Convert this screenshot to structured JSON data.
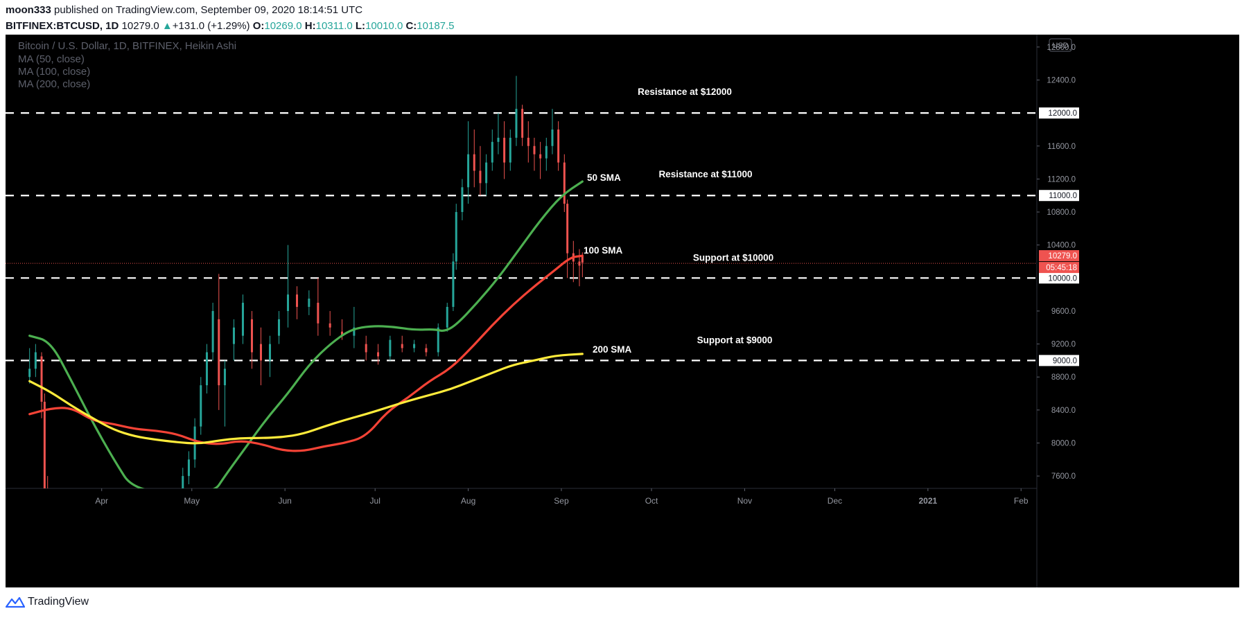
{
  "header": {
    "author": "moon333",
    "published": "published on TradingView.com, September 09, 2020 18:14:51 UTC",
    "symbol": "BITFINEX:BTCUSD, 1D",
    "last": "10279.0",
    "change_arrow": "▲",
    "change": "+131.0 (+1.29%)",
    "o_label": "O:",
    "o": "10269.0",
    "h_label": "H:",
    "h": "10311.0",
    "l_label": "L:",
    "l": "10010.0",
    "c_label": "C:",
    "c": "10187.5"
  },
  "legend": {
    "line1": "Bitcoin / U.S. Dollar, 1D, BITFINEX, Heikin Ashi",
    "line2": "MA (50, close)",
    "line3": "MA (100, close)",
    "line4": "MA (200, close)"
  },
  "footer": {
    "brand": "TradingView"
  },
  "colors": {
    "background": "#000000",
    "up": "#26a69a",
    "down": "#ef5350",
    "ma50": "#4caf50",
    "ma100": "#f44336",
    "ma200": "#ffeb3b"
  },
  "chart_data": {
    "type": "candlestick",
    "currency_badge": "USD",
    "x_ticks": [
      "Apr",
      "May",
      "Jun",
      "Jul",
      "Aug",
      "Sep",
      "Oct",
      "Nov",
      "Dec",
      "2021",
      "Feb"
    ],
    "y_ticks": [
      "12800.0",
      "12400.0",
      "12000.0",
      "11600.0",
      "11200.0",
      "11000.0",
      "10800.0",
      "10400.0",
      "10279.0",
      "10000.0",
      "9600.0",
      "9200.0",
      "9000.0",
      "8800.0",
      "8400.0",
      "8000.0",
      "7600.0"
    ],
    "ylim": [
      7450,
      12950
    ],
    "last_price_label": "10279.0",
    "countdown_label": "05:45:18",
    "levels": [
      {
        "value": 12000,
        "label": "Resistance at $12000",
        "axis_label": "12000.0"
      },
      {
        "value": 11000,
        "label": "Resistance at $11000",
        "axis_label": "11000.0"
      },
      {
        "value": 10000,
        "label": "Support at $10000",
        "axis_label": "10000.0"
      },
      {
        "value": 9000,
        "label": "Support at $9000",
        "axis_label": "9000.0"
      }
    ],
    "ma_labels": [
      "50 SMA",
      "100 SMA",
      "200 SMA"
    ],
    "series": [
      {
        "name": "MA (50, close)",
        "color": "#4caf50",
        "points": [
          [
            "2020-03-08",
            9300
          ],
          [
            "2020-03-15",
            9230
          ],
          [
            "2020-03-22",
            8750
          ],
          [
            "2020-03-29",
            8250
          ],
          [
            "2020-04-05",
            7800
          ],
          [
            "2020-04-12",
            7400
          ],
          [
            "2020-05-08",
            7380
          ],
          [
            "2020-05-12",
            7600
          ],
          [
            "2020-05-19",
            7950
          ],
          [
            "2020-05-26",
            8300
          ],
          [
            "2020-06-02",
            8600
          ],
          [
            "2020-06-09",
            8950
          ],
          [
            "2020-06-16",
            9200
          ],
          [
            "2020-06-23",
            9380
          ],
          [
            "2020-06-30",
            9420
          ],
          [
            "2020-07-07",
            9410
          ],
          [
            "2020-07-14",
            9370
          ],
          [
            "2020-07-21",
            9380
          ],
          [
            "2020-07-24",
            9350
          ],
          [
            "2020-07-28",
            9430
          ],
          [
            "2020-08-04",
            9700
          ],
          [
            "2020-08-11",
            10000
          ],
          [
            "2020-08-18",
            10350
          ],
          [
            "2020-08-25",
            10700
          ],
          [
            "2020-09-01",
            11000
          ],
          [
            "2020-09-08",
            11170
          ]
        ]
      },
      {
        "name": "MA (100, close)",
        "color": "#f44336",
        "points": [
          [
            "2020-03-08",
            8350
          ],
          [
            "2020-03-15",
            8420
          ],
          [
            "2020-03-22",
            8430
          ],
          [
            "2020-03-29",
            8270
          ],
          [
            "2020-04-05",
            8230
          ],
          [
            "2020-04-12",
            8170
          ],
          [
            "2020-04-19",
            8150
          ],
          [
            "2020-04-26",
            8110
          ],
          [
            "2020-05-03",
            8010
          ],
          [
            "2020-05-10",
            7980
          ],
          [
            "2020-05-17",
            8030
          ],
          [
            "2020-05-24",
            7990
          ],
          [
            "2020-05-31",
            7910
          ],
          [
            "2020-06-07",
            7900
          ],
          [
            "2020-06-14",
            7960
          ],
          [
            "2020-06-21",
            8000
          ],
          [
            "2020-06-28",
            8080
          ],
          [
            "2020-07-05",
            8380
          ],
          [
            "2020-07-12",
            8550
          ],
          [
            "2020-07-19",
            8750
          ],
          [
            "2020-07-26",
            8900
          ],
          [
            "2020-08-02",
            9150
          ],
          [
            "2020-08-09",
            9430
          ],
          [
            "2020-08-16",
            9680
          ],
          [
            "2020-08-23",
            9900
          ],
          [
            "2020-08-30",
            10100
          ],
          [
            "2020-09-04",
            10250
          ],
          [
            "2020-09-08",
            10270
          ]
        ]
      },
      {
        "name": "MA (200, close)",
        "color": "#ffeb3b",
        "points": [
          [
            "2020-03-08",
            8750
          ],
          [
            "2020-03-15",
            8620
          ],
          [
            "2020-03-22",
            8450
          ],
          [
            "2020-03-29",
            8300
          ],
          [
            "2020-04-05",
            8160
          ],
          [
            "2020-04-12",
            8080
          ],
          [
            "2020-04-19",
            8040
          ],
          [
            "2020-04-26",
            8010
          ],
          [
            "2020-05-03",
            7990
          ],
          [
            "2020-05-10",
            8030
          ],
          [
            "2020-05-17",
            8060
          ],
          [
            "2020-05-24",
            8060
          ],
          [
            "2020-05-31",
            8070
          ],
          [
            "2020-06-07",
            8110
          ],
          [
            "2020-06-14",
            8200
          ],
          [
            "2020-06-21",
            8280
          ],
          [
            "2020-06-28",
            8350
          ],
          [
            "2020-07-05",
            8430
          ],
          [
            "2020-07-12",
            8510
          ],
          [
            "2020-07-19",
            8580
          ],
          [
            "2020-07-26",
            8650
          ],
          [
            "2020-08-02",
            8750
          ],
          [
            "2020-08-09",
            8850
          ],
          [
            "2020-08-16",
            8950
          ],
          [
            "2020-08-23",
            9000
          ],
          [
            "2020-08-30",
            9060
          ],
          [
            "2020-09-08",
            9080
          ]
        ]
      }
    ],
    "candles_ohlc": [
      [
        "2020-03-08",
        8800,
        9150,
        8720,
        8900
      ],
      [
        "2020-03-10",
        8900,
        9200,
        8800,
        9100
      ],
      [
        "2020-03-12",
        9050,
        9100,
        8300,
        8500
      ],
      [
        "2020-03-13",
        8500,
        8600,
        7200,
        7400
      ],
      [
        "2020-03-14",
        7400,
        7600,
        6800,
        7000
      ],
      [
        "2020-04-28",
        7400,
        7700,
        7300,
        7600
      ],
      [
        "2020-04-30",
        7600,
        7900,
        7500,
        7800
      ],
      [
        "2020-05-02",
        7800,
        8300,
        7700,
        8200
      ],
      [
        "2020-05-04",
        8200,
        8800,
        8100,
        8700
      ],
      [
        "2020-05-06",
        8700,
        9200,
        8600,
        9100
      ],
      [
        "2020-05-08",
        9100,
        9700,
        9000,
        9600
      ],
      [
        "2020-05-10",
        9500,
        10050,
        8400,
        8700
      ],
      [
        "2020-05-12",
        8700,
        9000,
        8200,
        8900
      ],
      [
        "2020-05-15",
        9200,
        9500,
        9000,
        9400
      ],
      [
        "2020-05-18",
        9300,
        9800,
        9200,
        9700
      ],
      [
        "2020-05-21",
        9500,
        9600,
        8900,
        9100
      ],
      [
        "2020-05-24",
        9200,
        9400,
        8700,
        9000
      ],
      [
        "2020-05-27",
        9000,
        9300,
        8800,
        9200
      ],
      [
        "2020-05-30",
        9300,
        9600,
        9200,
        9500
      ],
      [
        "2020-06-02",
        9600,
        10400,
        9400,
        9800
      ],
      [
        "2020-06-05",
        9800,
        9900,
        9500,
        9650
      ],
      [
        "2020-06-09",
        9650,
        9850,
        9550,
        9750
      ],
      [
        "2020-06-12",
        9700,
        10000,
        9300,
        9450
      ],
      [
        "2020-06-16",
        9450,
        9600,
        9300,
        9400
      ],
      [
        "2020-06-20",
        9350,
        9500,
        9250,
        9300
      ],
      [
        "2020-06-24",
        9300,
        9650,
        9150,
        9400
      ],
      [
        "2020-06-28",
        9200,
        9300,
        9000,
        9100
      ],
      [
        "2020-07-02",
        9100,
        9200,
        8950,
        9050
      ],
      [
        "2020-07-06",
        9050,
        9300,
        9000,
        9250
      ],
      [
        "2020-07-10",
        9200,
        9300,
        9100,
        9150
      ],
      [
        "2020-07-14",
        9150,
        9250,
        9100,
        9200
      ],
      [
        "2020-07-18",
        9150,
        9200,
        9050,
        9100
      ],
      [
        "2020-07-22",
        9100,
        9450,
        9050,
        9400
      ],
      [
        "2020-07-25",
        9400,
        9700,
        9350,
        9650
      ],
      [
        "2020-07-27",
        9650,
        10300,
        9600,
        10200
      ],
      [
        "2020-07-28",
        10200,
        10900,
        10100,
        10800
      ],
      [
        "2020-07-30",
        10800,
        11200,
        10700,
        11100
      ],
      [
        "2020-08-01",
        11100,
        11900,
        10900,
        11500
      ],
      [
        "2020-08-03",
        11500,
        11800,
        11100,
        11300
      ],
      [
        "2020-08-05",
        11300,
        11600,
        11000,
        11150
      ],
      [
        "2020-08-07",
        11150,
        11500,
        11000,
        11400
      ],
      [
        "2020-08-09",
        11400,
        11800,
        11300,
        11650
      ],
      [
        "2020-08-11",
        11650,
        12000,
        11500,
        11700
      ],
      [
        "2020-08-13",
        11700,
        11900,
        11200,
        11400
      ],
      [
        "2020-08-15",
        11400,
        11800,
        11300,
        11700
      ],
      [
        "2020-08-17",
        11700,
        12450,
        11600,
        12050
      ],
      [
        "2020-08-19",
        12050,
        12100,
        11600,
        11700
      ],
      [
        "2020-08-21",
        11700,
        11900,
        11400,
        11600
      ],
      [
        "2020-08-23",
        11600,
        11700,
        11300,
        11500
      ],
      [
        "2020-08-25",
        11500,
        11650,
        11200,
        11450
      ],
      [
        "2020-08-27",
        11450,
        11700,
        11300,
        11600
      ],
      [
        "2020-08-29",
        11600,
        12050,
        11500,
        11800
      ],
      [
        "2020-08-31",
        11800,
        11900,
        11300,
        11400
      ],
      [
        "2020-09-02",
        11400,
        11500,
        10800,
        10900
      ],
      [
        "2020-09-03",
        10900,
        10950,
        10000,
        10300
      ],
      [
        "2020-09-05",
        10300,
        10450,
        9950,
        10200
      ],
      [
        "2020-09-07",
        10200,
        10350,
        9900,
        10150
      ],
      [
        "2020-09-08",
        10269,
        10311,
        10010,
        10187.5
      ]
    ]
  }
}
